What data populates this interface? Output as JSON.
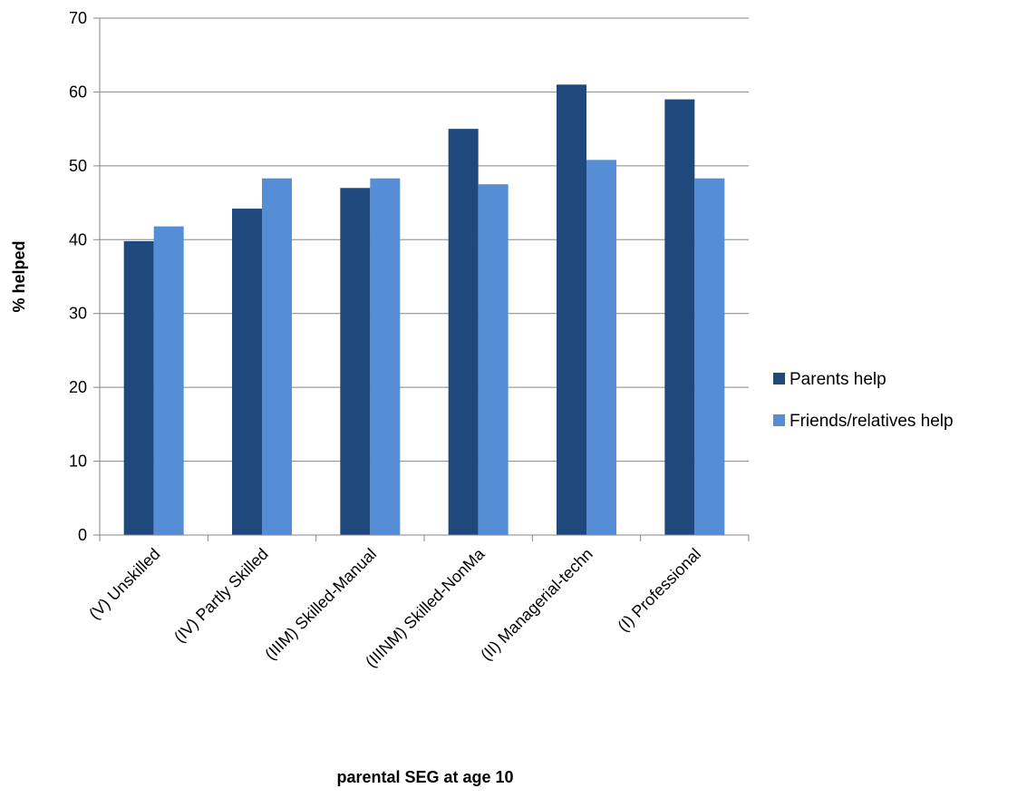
{
  "chart_data": {
    "type": "bar",
    "title": "",
    "xlabel": "parental SEG at age 10",
    "ylabel": "% helped",
    "ylim": [
      0,
      70
    ],
    "yticks": [
      0,
      10,
      20,
      30,
      40,
      50,
      60,
      70
    ],
    "grid": true,
    "legend_position": "right",
    "categories": [
      "(V) Unskilled",
      "(IV) Partly Skilled",
      "(IIIM) Skilled-Manual",
      "(IIINM) Skilled-NonMa",
      "(II) Managerial-techn",
      "(I) Professional"
    ],
    "series": [
      {
        "name": "Parents help",
        "color": "#1f497d",
        "values": [
          39.8,
          44.2,
          47.0,
          55.0,
          61.0,
          59.0
        ]
      },
      {
        "name": "Friends/relatives help",
        "color": "#558ed5",
        "values": [
          41.8,
          48.3,
          48.3,
          47.5,
          50.8,
          48.3
        ]
      }
    ]
  }
}
